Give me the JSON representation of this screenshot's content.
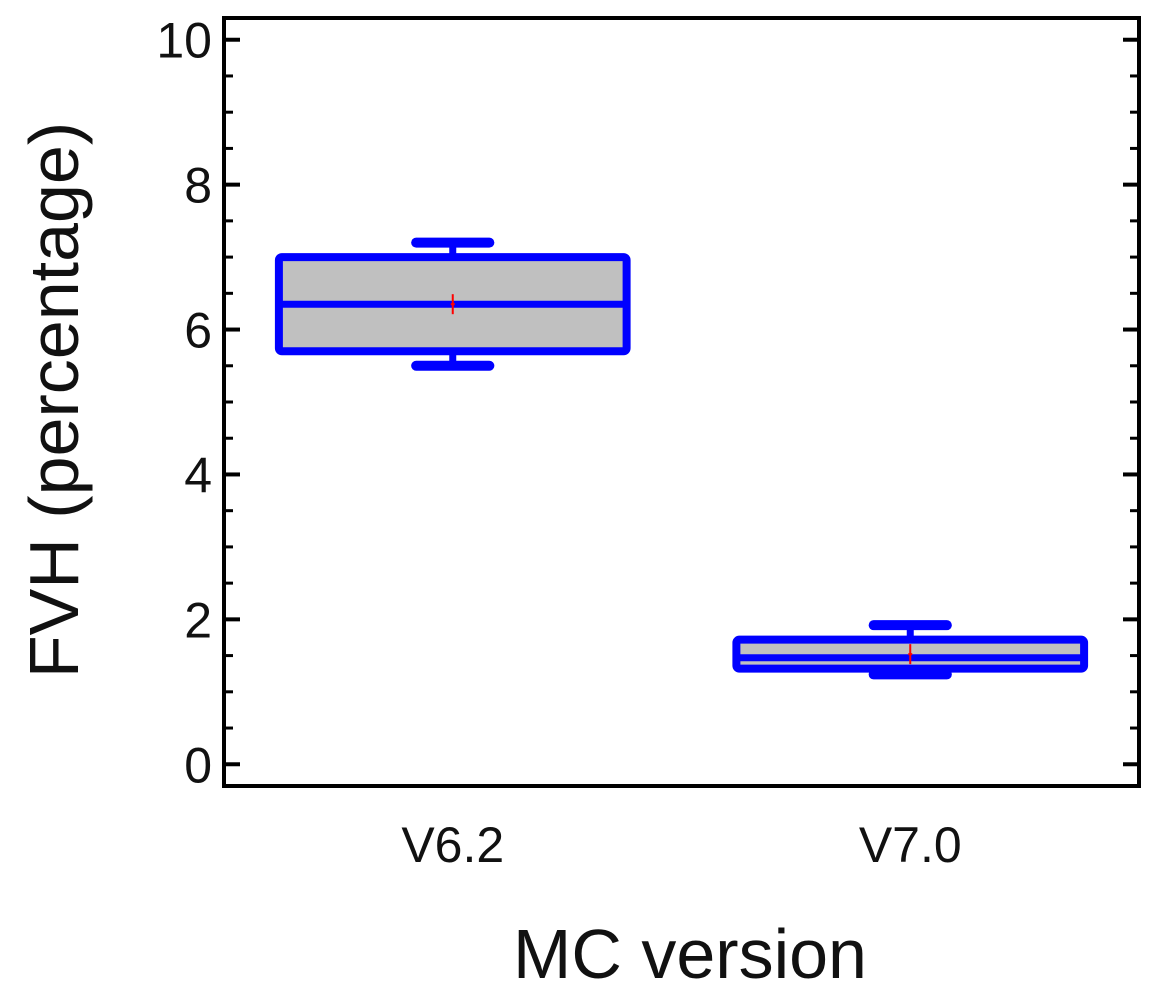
{
  "chart_data": {
    "type": "box",
    "xlabel": "MC version",
    "ylabel": "FVH (percentage)",
    "ylim": [
      -0.3,
      10.3
    ],
    "yticks": [
      "0",
      "2",
      "4",
      "6",
      "8",
      "10"
    ],
    "grid": false,
    "legend": "none",
    "categories": [
      "V6.2",
      "V7.0"
    ],
    "boxes": [
      {
        "label": "V6.2",
        "min": 5.5,
        "q1": 5.7,
        "median": 6.35,
        "q3": 7.0,
        "max": 7.2,
        "mean": 6.35
      },
      {
        "label": "V7.0",
        "min": 1.24,
        "q1": 1.32,
        "median": 1.47,
        "q3": 1.72,
        "max": 1.92,
        "mean": 1.52
      }
    ],
    "colors": {
      "box_edge": "#0000ff",
      "box_fill": "#c0c0c0",
      "mean_marker": "#ff0000",
      "axis": "#000000"
    }
  }
}
